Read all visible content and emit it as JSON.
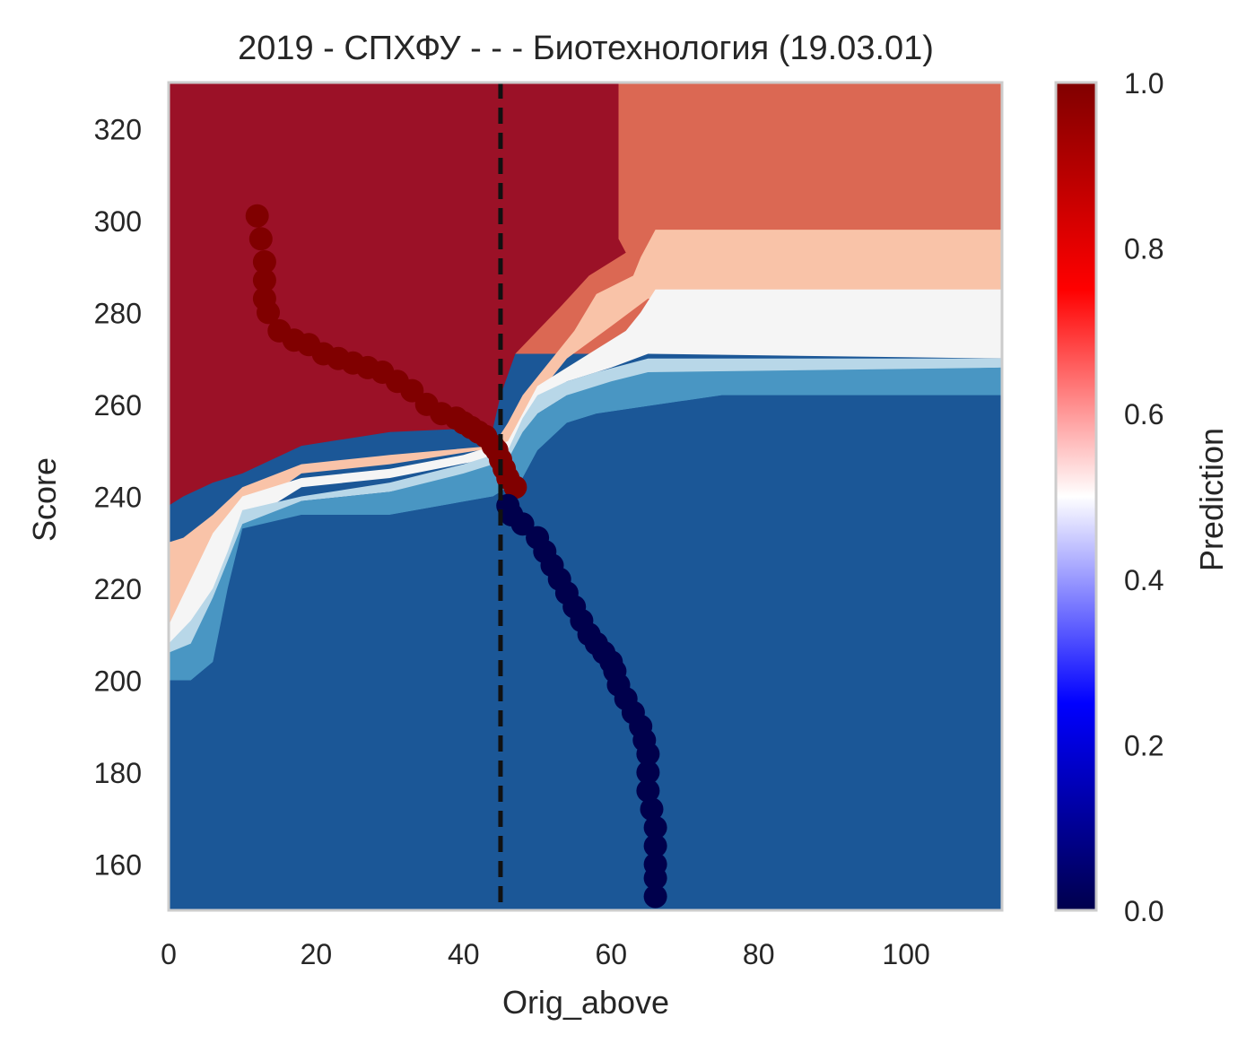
{
  "chart_data": {
    "type": "heatmap",
    "title": "2019 - СПХФУ - - - Биотехнология (19.03.01)",
    "xlabel": "Orig_above",
    "ylabel": "Score",
    "xlim": [
      0,
      113
    ],
    "ylim": [
      150,
      330
    ],
    "x_ticks": [
      0,
      20,
      40,
      60,
      80,
      100
    ],
    "y_ticks": [
      160,
      180,
      200,
      220,
      240,
      260,
      280,
      300,
      320
    ],
    "grid": false,
    "threshold_line": {
      "x": 45,
      "style": "dashed",
      "color": "#111111"
    },
    "colorbar": {
      "label": "Prediction",
      "range": [
        0,
        1
      ],
      "ticks": [
        "0.0",
        "0.2",
        "0.4",
        "0.6",
        "0.8",
        "1.0"
      ],
      "stops": [
        "#00004c",
        "#0000ff",
        "#ffffff",
        "#ff0000",
        "#800000"
      ]
    },
    "level_colors": {
      "0.1": "#1b5797",
      "0.3": "#4996c3",
      "0.4": "#b8d7e8",
      "0.5": "#f5f5f5",
      "0.6": "#f9c3a8",
      "0.7": "#db6853",
      "0.9": "#9b1127"
    },
    "decision_regions": [
      {
        "level": 0.7,
        "polygon": [
          [
            0,
            330
          ],
          [
            113,
            330
          ],
          [
            113,
            271
          ],
          [
            0,
            271
          ]
        ]
      },
      {
        "level": 0.9,
        "polygon": [
          [
            0,
            330
          ],
          [
            61,
            330
          ],
          [
            61,
            296
          ],
          [
            62,
            293
          ],
          [
            57,
            288
          ],
          [
            53,
            281
          ],
          [
            47,
            271
          ],
          [
            45,
            262
          ],
          [
            44,
            255
          ],
          [
            30,
            254
          ],
          [
            18,
            251
          ],
          [
            10,
            245
          ],
          [
            6,
            243
          ],
          [
            2,
            240
          ],
          [
            0,
            238
          ]
        ]
      },
      {
        "level": 0.6,
        "polygon": [
          [
            113,
            298
          ],
          [
            66,
            298
          ],
          [
            64,
            292
          ],
          [
            63,
            288
          ],
          [
            58,
            284
          ],
          [
            55,
            276
          ],
          [
            51,
            268
          ],
          [
            48,
            262
          ],
          [
            46,
            256
          ],
          [
            44,
            251
          ],
          [
            30,
            249
          ],
          [
            18,
            247
          ],
          [
            10,
            242
          ],
          [
            6,
            236
          ],
          [
            2,
            231
          ],
          [
            0,
            230
          ],
          [
            0,
            210
          ],
          [
            3,
            211
          ],
          [
            6,
            222
          ],
          [
            8,
            230
          ],
          [
            10,
            236
          ],
          [
            18,
            245
          ],
          [
            30,
            247
          ],
          [
            46,
            251
          ],
          [
            50,
            262
          ],
          [
            54,
            270
          ],
          [
            60,
            277
          ],
          [
            65,
            283
          ],
          [
            113,
            283
          ]
        ]
      },
      {
        "level": 0.5,
        "polygon": [
          [
            113,
            285
          ],
          [
            66,
            285
          ],
          [
            64,
            280
          ],
          [
            62,
            276
          ],
          [
            58,
            272
          ],
          [
            54,
            268
          ],
          [
            50,
            264
          ],
          [
            48,
            258
          ],
          [
            46,
            252
          ],
          [
            40,
            249
          ],
          [
            30,
            246
          ],
          [
            18,
            244
          ],
          [
            10,
            240
          ],
          [
            6,
            232
          ],
          [
            3,
            222
          ],
          [
            0,
            212
          ],
          [
            0,
            208
          ],
          [
            3,
            208
          ],
          [
            6,
            218
          ],
          [
            8,
            226
          ],
          [
            10,
            234
          ],
          [
            18,
            242
          ],
          [
            30,
            244
          ],
          [
            46,
            249
          ],
          [
            50,
            260
          ],
          [
            54,
            265
          ],
          [
            60,
            268
          ],
          [
            65,
            271
          ],
          [
            113,
            270
          ]
        ]
      },
      {
        "level": 0.4,
        "polygon": [
          [
            113,
            270
          ],
          [
            65,
            270
          ],
          [
            58,
            267
          ],
          [
            54,
            265
          ],
          [
            50,
            262
          ],
          [
            48,
            257
          ],
          [
            46,
            250
          ],
          [
            40,
            247
          ],
          [
            30,
            243
          ],
          [
            18,
            240
          ],
          [
            10,
            237
          ],
          [
            8,
            228
          ],
          [
            6,
            220
          ],
          [
            3,
            213
          ],
          [
            0,
            208
          ],
          [
            0,
            205
          ],
          [
            3,
            204
          ],
          [
            6,
            214
          ],
          [
            8,
            224
          ],
          [
            10,
            232
          ],
          [
            18,
            239
          ],
          [
            30,
            241
          ],
          [
            46,
            246
          ],
          [
            50,
            258
          ],
          [
            54,
            262
          ],
          [
            60,
            264
          ],
          [
            65,
            266
          ],
          [
            113,
            268
          ]
        ]
      },
      {
        "level": 0.3,
        "polygon": [
          [
            113,
            268
          ],
          [
            65,
            267
          ],
          [
            60,
            265
          ],
          [
            54,
            262
          ],
          [
            50,
            258
          ],
          [
            48,
            254
          ],
          [
            46,
            248
          ],
          [
            40,
            245
          ],
          [
            30,
            241
          ],
          [
            18,
            239
          ],
          [
            10,
            234
          ],
          [
            8,
            226
          ],
          [
            6,
            218
          ],
          [
            3,
            208
          ],
          [
            0,
            206
          ],
          [
            0,
            200
          ],
          [
            3,
            200
          ],
          [
            6,
            204
          ],
          [
            8,
            214
          ],
          [
            10,
            230
          ],
          [
            18,
            236
          ],
          [
            30,
            236
          ],
          [
            44,
            240
          ],
          [
            48,
            244
          ],
          [
            50,
            250
          ],
          [
            54,
            256
          ],
          [
            58,
            258
          ],
          [
            75,
            262
          ],
          [
            113,
            262
          ]
        ]
      },
      {
        "level": 0.1,
        "polygon": [
          [
            113,
            262
          ],
          [
            75,
            262
          ],
          [
            58,
            258
          ],
          [
            54,
            256
          ],
          [
            50,
            250
          ],
          [
            48,
            244
          ],
          [
            44,
            240
          ],
          [
            30,
            236
          ],
          [
            18,
            236
          ],
          [
            10,
            233
          ],
          [
            8,
            220
          ],
          [
            6,
            204
          ],
          [
            3,
            200
          ],
          [
            0,
            200
          ],
          [
            0,
            150
          ],
          [
            113,
            150
          ]
        ]
      }
    ],
    "series": [
      {
        "predicted_level": 1.0,
        "color": "#800000",
        "x": [
          12,
          12.5,
          13,
          13,
          13,
          13.5,
          15,
          17,
          19,
          21,
          23,
          25,
          27,
          29,
          31,
          33,
          35,
          37,
          39,
          40,
          41,
          42,
          43,
          44,
          44.5,
          45,
          45.5,
          46,
          47
        ],
        "y": [
          301,
          296,
          291,
          287,
          283,
          280,
          276,
          274,
          273,
          271,
          270,
          269,
          268,
          267,
          265,
          263,
          260,
          258,
          257,
          256,
          255,
          254,
          253,
          251,
          250,
          248,
          246,
          244,
          242
        ]
      },
      {
        "predicted_level": 0.0,
        "color": "#00004c",
        "x": [
          46,
          46.5,
          48,
          50,
          51,
          52,
          53,
          54,
          55,
          56,
          57,
          58,
          59,
          60,
          60.5,
          61,
          62,
          63,
          64,
          64.5,
          65,
          65,
          65,
          65.5,
          66,
          66,
          66,
          66,
          66
        ],
        "y": [
          238,
          236,
          234,
          231,
          228,
          225,
          222,
          219,
          216,
          213,
          210,
          208,
          206,
          204,
          202,
          199,
          196,
          193,
          190,
          187,
          184,
          180,
          176,
          172,
          168,
          164,
          160,
          157,
          153
        ]
      }
    ]
  }
}
